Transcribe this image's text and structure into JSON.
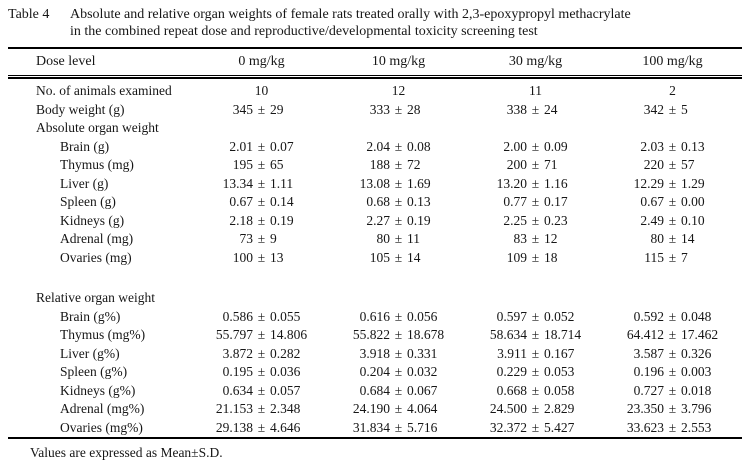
{
  "caption": {
    "label": "Table 4",
    "title_line1": "Absolute and relative organ weights of female rats treated orally with 2,3-epoxypropyl methacrylate",
    "title_line2": "in the combined repeat dose and reproductive/developmental toxicity screening test"
  },
  "plus_minus": "±",
  "columns": [
    "Dose level",
    "0 mg/kg",
    "10 mg/kg",
    "30 mg/kg",
    "100 mg/kg"
  ],
  "rows": [
    {
      "label": "No. of animals examined",
      "indent": 0,
      "values": [
        {
          "value": "10"
        },
        {
          "value": "12"
        },
        {
          "value": "11"
        },
        {
          "value": "2"
        }
      ]
    },
    {
      "label": "Body weight (g)",
      "indent": 0,
      "values": [
        {
          "mean": "345",
          "sd": "29"
        },
        {
          "mean": "333",
          "sd": "28"
        },
        {
          "mean": "338",
          "sd": "24"
        },
        {
          "mean": "342",
          "sd": "5"
        }
      ]
    },
    {
      "label": "Absolute organ weight",
      "section": true
    },
    {
      "label": "Brain (g)",
      "indent": 1,
      "values": [
        {
          "mean": "2.01",
          "sd": "0.07"
        },
        {
          "mean": "2.04",
          "sd": "0.08"
        },
        {
          "mean": "2.00",
          "sd": "0.09"
        },
        {
          "mean": "2.03",
          "sd": "0.13"
        }
      ]
    },
    {
      "label": "Thymus (mg)",
      "indent": 1,
      "values": [
        {
          "mean": "195",
          "sd": "65"
        },
        {
          "mean": "188",
          "sd": "72"
        },
        {
          "mean": "200",
          "sd": "71"
        },
        {
          "mean": "220",
          "sd": "57"
        }
      ]
    },
    {
      "label": "Liver (g)",
      "indent": 1,
      "values": [
        {
          "mean": "13.34",
          "sd": "1.11"
        },
        {
          "mean": "13.08",
          "sd": "1.69"
        },
        {
          "mean": "13.20",
          "sd": "1.16"
        },
        {
          "mean": "12.29",
          "sd": "1.29"
        }
      ]
    },
    {
      "label": "Spleen (g)",
      "indent": 1,
      "values": [
        {
          "mean": "0.67",
          "sd": "0.14"
        },
        {
          "mean": "0.68",
          "sd": "0.13"
        },
        {
          "mean": "0.77",
          "sd": "0.17"
        },
        {
          "mean": "0.67",
          "sd": "0.00"
        }
      ]
    },
    {
      "label": "Kidneys (g)",
      "indent": 1,
      "values": [
        {
          "mean": "2.18",
          "sd": "0.19"
        },
        {
          "mean": "2.27",
          "sd": "0.19"
        },
        {
          "mean": "2.25",
          "sd": "0.23"
        },
        {
          "mean": "2.49",
          "sd": "0.10"
        }
      ]
    },
    {
      "label": "Adrenal (mg)",
      "indent": 1,
      "values": [
        {
          "mean": "73",
          "sd": "9"
        },
        {
          "mean": "80",
          "sd": "11"
        },
        {
          "mean": "83",
          "sd": "12"
        },
        {
          "mean": "80",
          "sd": "14"
        }
      ]
    },
    {
      "label": "Ovaries (mg)",
      "indent": 1,
      "values": [
        {
          "mean": "100",
          "sd": "13"
        },
        {
          "mean": "105",
          "sd": "14"
        },
        {
          "mean": "109",
          "sd": "18"
        },
        {
          "mean": "115",
          "sd": "7"
        }
      ]
    },
    {
      "spacer": true
    },
    {
      "label": "Relative organ weight",
      "section": true
    },
    {
      "label": "Brain (g%)",
      "indent": 1,
      "values": [
        {
          "mean": "0.586",
          "sd": "0.055"
        },
        {
          "mean": "0.616",
          "sd": "0.056"
        },
        {
          "mean": "0.597",
          "sd": "0.052"
        },
        {
          "mean": "0.592",
          "sd": "0.048"
        }
      ]
    },
    {
      "label": "Thymus (mg%)",
      "indent": 1,
      "values": [
        {
          "mean": "55.797",
          "sd": "14.806"
        },
        {
          "mean": "55.822",
          "sd": "18.678"
        },
        {
          "mean": "58.634",
          "sd": "18.714"
        },
        {
          "mean": "64.412",
          "sd": "17.462"
        }
      ]
    },
    {
      "label": "Liver (g%)",
      "indent": 1,
      "values": [
        {
          "mean": "3.872",
          "sd": "0.282"
        },
        {
          "mean": "3.918",
          "sd": "0.331"
        },
        {
          "mean": "3.911",
          "sd": "0.167"
        },
        {
          "mean": "3.587",
          "sd": "0.326"
        }
      ]
    },
    {
      "label": "Spleen (g%)",
      "indent": 1,
      "values": [
        {
          "mean": "0.195",
          "sd": "0.036"
        },
        {
          "mean": "0.204",
          "sd": "0.032"
        },
        {
          "mean": "0.229",
          "sd": "0.053"
        },
        {
          "mean": "0.196",
          "sd": "0.003"
        }
      ]
    },
    {
      "label": "Kidneys (g%)",
      "indent": 1,
      "values": [
        {
          "mean": "0.634",
          "sd": "0.057"
        },
        {
          "mean": "0.684",
          "sd": "0.067"
        },
        {
          "mean": "0.668",
          "sd": "0.058"
        },
        {
          "mean": "0.727",
          "sd": "0.018"
        }
      ]
    },
    {
      "label": "Adrenal (mg%)",
      "indent": 1,
      "values": [
        {
          "mean": "21.153",
          "sd": "2.348"
        },
        {
          "mean": "24.190",
          "sd": "4.064"
        },
        {
          "mean": "24.500",
          "sd": "2.829"
        },
        {
          "mean": "23.350",
          "sd": "3.796"
        }
      ]
    },
    {
      "label": "Ovaries (mg%)",
      "indent": 1,
      "values": [
        {
          "mean": "29.138",
          "sd": "4.646"
        },
        {
          "mean": "31.834",
          "sd": "5.716"
        },
        {
          "mean": "32.372",
          "sd": "5.427"
        },
        {
          "mean": "33.623",
          "sd": "2.553"
        }
      ]
    }
  ],
  "footnote": "Values are expressed as Mean±S.D."
}
